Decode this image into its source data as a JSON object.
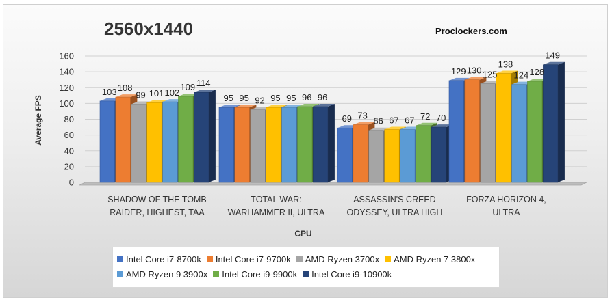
{
  "chart_data": {
    "type": "bar",
    "title": "2560x1440",
    "watermark": "Proclockers.com",
    "xlabel": "CPU",
    "ylabel": "Average FPS",
    "ylim": [
      0,
      160
    ],
    "yticks": [
      0,
      20,
      40,
      60,
      80,
      100,
      120,
      140,
      160
    ],
    "grid": true,
    "legend_position": "bottom",
    "categories": [
      [
        "SHADOW OF THE TOMB",
        "RAIDER, HIGHEST, TAA"
      ],
      [
        "TOTAL WAR:",
        "WARHAMMER II, ULTRA"
      ],
      [
        "ASSASSIN'S CREED",
        "ODYSSEY, ULTRA HIGH"
      ],
      [
        "FORZA HORIZON 4,",
        "ULTRA"
      ]
    ],
    "series": [
      {
        "name": "Intel Core i7-8700k",
        "color": "#4472c4",
        "values": [
          103,
          95,
          69,
          129
        ]
      },
      {
        "name": "Intel Core i7-9700k",
        "color": "#ed7d31",
        "values": [
          108,
          95,
          73,
          130
        ]
      },
      {
        "name": "AMD Ryzen 3700x",
        "color": "#a5a5a5",
        "values": [
          99,
          92,
          66,
          125
        ]
      },
      {
        "name": "AMD Ryzen 7 3800x",
        "color": "#ffc000",
        "values": [
          101,
          95,
          67,
          138
        ]
      },
      {
        "name": "AMD Ryzen 9 3900x",
        "color": "#5b9bd5",
        "values": [
          102,
          95,
          67,
          124
        ]
      },
      {
        "name": "Intel Core i9-9900k",
        "color": "#70ad47",
        "values": [
          109,
          96,
          72,
          128
        ]
      },
      {
        "name": "Intel Core i9-10900k",
        "color": "#264478",
        "values": [
          114,
          96,
          70,
          149
        ]
      }
    ]
  }
}
